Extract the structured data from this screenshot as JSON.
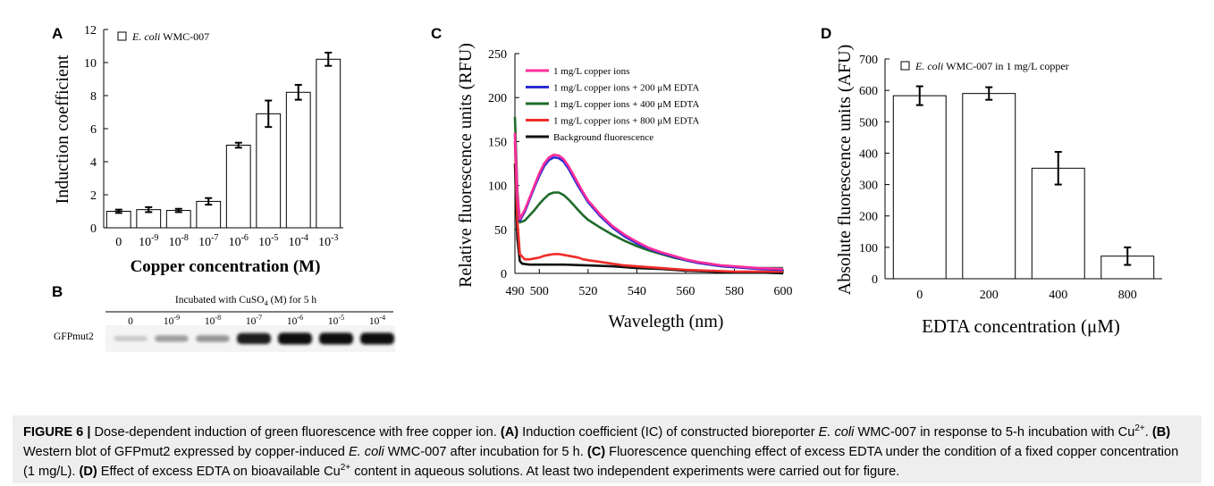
{
  "figure_label": "FIGURE 6 |",
  "caption": [
    {
      "t": "text",
      "v": " Dose-dependent induction of green fluorescence with free copper ion. "
    },
    {
      "t": "bold",
      "v": "(A)"
    },
    {
      "t": "text",
      "v": " Induction coefficient (IC) of constructed bioreporter "
    },
    {
      "t": "italic",
      "v": "E. coli"
    },
    {
      "t": "text",
      "v": " WMC-007 in response to 5-h incubation with Cu"
    },
    {
      "t": "sup",
      "v": "2+"
    },
    {
      "t": "text",
      "v": ". "
    },
    {
      "t": "bold",
      "v": "(B)"
    },
    {
      "t": "text",
      "v": " Western blot of GFPmut2 expressed by copper-induced "
    },
    {
      "t": "italic",
      "v": "E. coli"
    },
    {
      "t": "text",
      "v": " WMC-007 after incubation for 5 h. "
    },
    {
      "t": "bold",
      "v": "(C)"
    },
    {
      "t": "text",
      "v": " Fluorescence quenching effect of excess EDTA under the condition of a fixed copper concentration (1 mg/L). "
    },
    {
      "t": "bold",
      "v": "(D)"
    },
    {
      "t": "text",
      "v": " Effect of excess EDTA on bioavailable Cu"
    },
    {
      "t": "sup",
      "v": "2+"
    },
    {
      "t": "text",
      "v": " content in aqueous solutions. At least two independent experiments were carried out for figure."
    }
  ],
  "colors": {
    "pink": "#ff2d9b",
    "blue": "#2b2bd6",
    "green": "#1f6b2a",
    "red": "#ef2b2b",
    "black": "#111111",
    "caption_bg": "#eeeeee"
  },
  "blot": {
    "panel_label": "B",
    "title_prefix": "Incubated with CuSO",
    "title_sub": "4",
    "title_suffix": " (M) for 5 h",
    "row_label": "GFPmut2",
    "lanes": [
      {
        "label": "0",
        "exp": "",
        "intensity": 0.08
      },
      {
        "label": "10",
        "exp": "-9",
        "intensity": 0.28
      },
      {
        "label": "10",
        "exp": "-8",
        "intensity": 0.32
      },
      {
        "label": "10",
        "exp": "-7",
        "intensity": 0.9
      },
      {
        "label": "10",
        "exp": "-6",
        "intensity": 1.0
      },
      {
        "label": "10",
        "exp": "-5",
        "intensity": 1.0
      },
      {
        "label": "10",
        "exp": "-4",
        "intensity": 1.0
      }
    ]
  },
  "chart_data": [
    {
      "panel": "A",
      "type": "bar",
      "ylabel": "Induction coefficient",
      "xlabel": "Copper concentration (M)",
      "ylim": [
        0,
        12
      ],
      "yticks": [
        0,
        2,
        4,
        6,
        8,
        10,
        12
      ],
      "legend": {
        "italic": "E. coli",
        "rest": " WMC-007",
        "placement": "top-left"
      },
      "categories": [
        {
          "base": "0",
          "exp": ""
        },
        {
          "base": "10",
          "exp": "-9"
        },
        {
          "base": "10",
          "exp": "-8"
        },
        {
          "base": "10",
          "exp": "-7"
        },
        {
          "base": "10",
          "exp": "-6"
        },
        {
          "base": "10",
          "exp": "-5"
        },
        {
          "base": "10",
          "exp": "-4"
        },
        {
          "base": "10",
          "exp": "-3"
        }
      ],
      "values": [
        1.0,
        1.1,
        1.05,
        1.6,
        5.0,
        6.9,
        8.2,
        10.2
      ],
      "errors": [
        0.1,
        0.15,
        0.1,
        0.2,
        0.15,
        0.8,
        0.45,
        0.4
      ]
    },
    {
      "panel": "C",
      "type": "line",
      "ylabel": "Relative fluorescence units (RFU)",
      "xlabel": "Wavelegth (nm)",
      "xlim": [
        490,
        600
      ],
      "ylim": [
        0,
        250
      ],
      "xticks": [
        490,
        500,
        520,
        540,
        560,
        580,
        600
      ],
      "yticks": [
        0,
        50,
        100,
        150,
        200,
        250
      ],
      "legend_placement": "top-left",
      "series": [
        {
          "name": "1 mg/L copper ions",
          "color": "#ff2d9b",
          "points": [
            [
              490,
              160
            ],
            [
              491,
              90
            ],
            [
              492,
              62
            ],
            [
              494,
              72
            ],
            [
              496,
              86
            ],
            [
              498,
              100
            ],
            [
              500,
              114
            ],
            [
              502,
              125
            ],
            [
              504,
              132
            ],
            [
              506,
              135
            ],
            [
              508,
              134
            ],
            [
              510,
              130
            ],
            [
              512,
              122
            ],
            [
              514,
              112
            ],
            [
              516,
              102
            ],
            [
              518,
              92
            ],
            [
              520,
              83
            ],
            [
              525,
              67
            ],
            [
              530,
              54
            ],
            [
              535,
              44
            ],
            [
              540,
              36
            ],
            [
              545,
              29
            ],
            [
              550,
              24
            ],
            [
              555,
              20
            ],
            [
              560,
              16
            ],
            [
              565,
              13
            ],
            [
              570,
              11
            ],
            [
              575,
              9
            ],
            [
              580,
              8
            ],
            [
              590,
              6
            ],
            [
              600,
              5
            ]
          ]
        },
        {
          "name": "1 mg/L copper ions + 200 μM EDTA",
          "color": "#2b2bd6",
          "points": [
            [
              490,
              158
            ],
            [
              491,
              88
            ],
            [
              492,
              60
            ],
            [
              494,
              70
            ],
            [
              496,
              84
            ],
            [
              498,
              98
            ],
            [
              500,
              111
            ],
            [
              502,
              122
            ],
            [
              504,
              129
            ],
            [
              506,
              132
            ],
            [
              508,
              131
            ],
            [
              510,
              127
            ],
            [
              512,
              119
            ],
            [
              514,
              109
            ],
            [
              516,
              99
            ],
            [
              518,
              90
            ],
            [
              520,
              81
            ],
            [
              525,
              65
            ],
            [
              530,
              52
            ],
            [
              535,
              42
            ],
            [
              540,
              34
            ],
            [
              545,
              28
            ],
            [
              550,
              23
            ],
            [
              555,
              19
            ],
            [
              560,
              15
            ],
            [
              565,
              12
            ],
            [
              570,
              10
            ],
            [
              575,
              8
            ],
            [
              580,
              7
            ],
            [
              590,
              5
            ],
            [
              600,
              4
            ]
          ]
        },
        {
          "name": "1 mg/L copper ions + 400 μM EDTA",
          "color": "#1f6b2a",
          "points": [
            [
              490,
              178
            ],
            [
              491,
              95
            ],
            [
              492,
              58
            ],
            [
              494,
              60
            ],
            [
              496,
              66
            ],
            [
              498,
              72
            ],
            [
              500,
              79
            ],
            [
              502,
              85
            ],
            [
              504,
              90
            ],
            [
              506,
              92
            ],
            [
              508,
              92
            ],
            [
              510,
              89
            ],
            [
              512,
              84
            ],
            [
              514,
              78
            ],
            [
              516,
              72
            ],
            [
              518,
              66
            ],
            [
              520,
              61
            ],
            [
              525,
              52
            ],
            [
              530,
              44
            ],
            [
              535,
              37
            ],
            [
              540,
              31
            ],
            [
              545,
              26
            ],
            [
              550,
              22
            ],
            [
              555,
              18
            ],
            [
              560,
              15
            ],
            [
              565,
              12
            ],
            [
              570,
              10
            ],
            [
              575,
              8
            ],
            [
              580,
              7
            ],
            [
              590,
              6
            ],
            [
              600,
              6
            ]
          ]
        },
        {
          "name": "1 mg/L copper ions + 800 μM EDTA",
          "color": "#ef2b2b",
          "points": [
            [
              490,
              150
            ],
            [
              491,
              60
            ],
            [
              492,
              22
            ],
            [
              494,
              16
            ],
            [
              496,
              16
            ],
            [
              498,
              17
            ],
            [
              500,
              18
            ],
            [
              502,
              20
            ],
            [
              504,
              21
            ],
            [
              506,
              22
            ],
            [
              508,
              22
            ],
            [
              510,
              21
            ],
            [
              512,
              20
            ],
            [
              514,
              19
            ],
            [
              516,
              18
            ],
            [
              518,
              16
            ],
            [
              520,
              15
            ],
            [
              525,
              13
            ],
            [
              530,
              11
            ],
            [
              535,
              9
            ],
            [
              540,
              8
            ],
            [
              545,
              7
            ],
            [
              550,
              6
            ],
            [
              555,
              5
            ],
            [
              560,
              4
            ],
            [
              570,
              3
            ],
            [
              580,
              2
            ],
            [
              590,
              2
            ],
            [
              600,
              2
            ]
          ]
        },
        {
          "name": "Background fluorescence",
          "color": "#111111",
          "points": [
            [
              490,
              125
            ],
            [
              491,
              40
            ],
            [
              492,
              14
            ],
            [
              493,
              11
            ],
            [
              496,
              10
            ],
            [
              500,
              10
            ],
            [
              510,
              10
            ],
            [
              520,
              9
            ],
            [
              530,
              8
            ],
            [
              540,
              6
            ],
            [
              550,
              5
            ],
            [
              560,
              3
            ],
            [
              570,
              2
            ],
            [
              580,
              1
            ],
            [
              590,
              1
            ],
            [
              600,
              0
            ]
          ]
        }
      ]
    },
    {
      "panel": "D",
      "type": "bar",
      "ylabel": "Absolute fluorescence units (AFU)",
      "xlabel": "EDTA concentration (μM)",
      "ylim": [
        0,
        700
      ],
      "yticks": [
        0,
        100,
        200,
        300,
        400,
        500,
        600,
        700
      ],
      "legend": {
        "italic": "E. coli",
        "rest": " WMC-007 in 1 mg/L copper",
        "placement": "top-left"
      },
      "categories": [
        {
          "base": "0",
          "exp": ""
        },
        {
          "base": "200",
          "exp": ""
        },
        {
          "base": "400",
          "exp": ""
        },
        {
          "base": "800",
          "exp": ""
        }
      ],
      "values": [
        583,
        590,
        352,
        72
      ],
      "errors": [
        30,
        20,
        52,
        28
      ]
    }
  ]
}
